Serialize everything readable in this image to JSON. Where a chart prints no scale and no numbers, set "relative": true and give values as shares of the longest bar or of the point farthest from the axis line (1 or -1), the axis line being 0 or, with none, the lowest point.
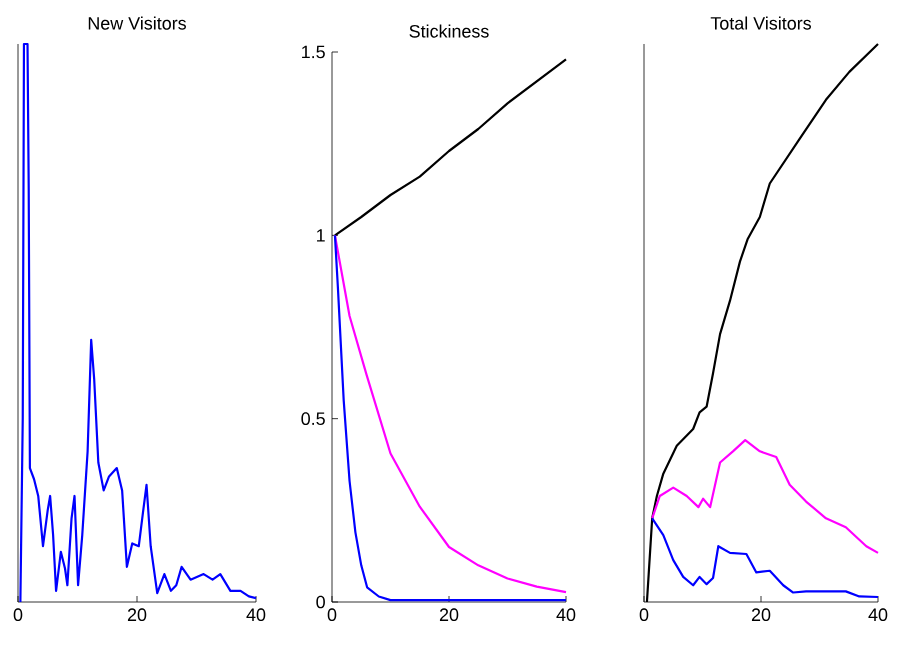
{
  "chart_data": [
    {
      "type": "line",
      "title": "New Visitors",
      "relative": true,
      "tick_labels": "x",
      "xlim": [
        0,
        40
      ],
      "xticks": [
        0,
        20,
        40
      ],
      "series": [
        {
          "color": "#0000ff",
          "x": [
            0.4,
            0.8,
            1.0,
            1.6,
            1.8,
            2.0,
            2.7,
            3.4,
            4.2,
            5.0,
            5.4,
            5.9,
            6.4,
            7.2,
            7.9,
            8.3,
            9.0,
            9.5,
            10.1,
            10.8,
            11.7,
            12.3,
            12.8,
            13.5,
            14.4,
            15.3,
            16.6,
            17.5,
            18.3,
            19.2,
            20.3,
            21.0,
            21.6,
            22.3,
            23.4,
            24.6,
            25.7,
            26.6,
            27.5,
            29.0,
            31.2,
            32.7,
            34.0,
            35.7,
            37.4,
            38.8,
            40
          ],
          "values": [
            0,
            0.33,
            1.0,
            1.0,
            0.74,
            0.24,
            0.22,
            0.19,
            0.1,
            0.165,
            0.19,
            0.12,
            0.02,
            0.09,
            0.06,
            0.03,
            0.15,
            0.19,
            0.03,
            0.12,
            0.27,
            0.47,
            0.4,
            0.25,
            0.2,
            0.225,
            0.24,
            0.2,
            0.063,
            0.105,
            0.1,
            0.16,
            0.21,
            0.1,
            0.016,
            0.05,
            0.02,
            0.03,
            0.063,
            0.04,
            0.05,
            0.04,
            0.05,
            0.02,
            0.02,
            0.01,
            0.007
          ]
        }
      ]
    },
    {
      "type": "line",
      "title": "Stickiness",
      "xlim": [
        0,
        40
      ],
      "xticks": [
        0,
        20,
        40
      ],
      "ylim": [
        0,
        1.5
      ],
      "yticks": [
        0,
        0.5,
        1,
        1.5
      ],
      "series": [
        {
          "color": "#000000",
          "x": [
            0.5,
            5,
            10,
            15,
            20,
            25,
            30,
            35,
            40
          ],
          "values": [
            1.0,
            1.05,
            1.11,
            1.16,
            1.23,
            1.29,
            1.36,
            1.42,
            1.48
          ]
        },
        {
          "color": "#ff00ff",
          "x": [
            0.5,
            3,
            5.9,
            10,
            15,
            20,
            25,
            30,
            35,
            40
          ],
          "values": [
            1.0,
            0.78,
            0.62,
            0.405,
            0.26,
            0.15,
            0.1,
            0.064,
            0.042,
            0.027
          ]
        },
        {
          "color": "#0000ff",
          "x": [
            0.5,
            1,
            2,
            3,
            4,
            5,
            6,
            8,
            10,
            40
          ],
          "values": [
            1.0,
            0.86,
            0.55,
            0.33,
            0.19,
            0.1,
            0.04,
            0.015,
            0.005,
            0.005
          ]
        }
      ]
    },
    {
      "type": "line",
      "title": "Total Visitors",
      "relative": true,
      "tick_labels": "x",
      "xlim": [
        0,
        40
      ],
      "xticks": [
        0,
        20,
        40
      ],
      "series": [
        {
          "color": "#000000",
          "x": [
            0.5,
            0.8,
            1.4,
            2.2,
            3.3,
            5.6,
            8.4,
            9.5,
            10.7,
            11.8,
            13,
            14.7,
            16.4,
            17.7,
            19.8,
            21.5,
            26.6,
            31.1,
            35.1,
            40
          ],
          "values": [
            0,
            0.05,
            0.15,
            0.19,
            0.23,
            0.28,
            0.31,
            0.34,
            0.35,
            0.41,
            0.48,
            0.54,
            0.61,
            0.65,
            0.69,
            0.75,
            0.83,
            0.9,
            0.95,
            1.0
          ]
        },
        {
          "color": "#ff00ff",
          "x": [
            1.4,
            2.7,
            5,
            7.3,
            9.3,
            10.1,
            11.3,
            13,
            15.2,
            17.3,
            19.8,
            22.6,
            24.9,
            27.7,
            31.1,
            34.5,
            38,
            40
          ],
          "values": [
            0.15,
            0.19,
            0.205,
            0.19,
            0.17,
            0.185,
            0.17,
            0.25,
            0.27,
            0.29,
            0.27,
            0.26,
            0.21,
            0.18,
            0.15,
            0.134,
            0.1,
            0.088
          ]
        },
        {
          "color": "#0000ff",
          "x": [
            1.4,
            3.3,
            5,
            6.7,
            8.4,
            9.5,
            10.7,
            11.8,
            12.7,
            14.7,
            17.5,
            19.2,
            21.5,
            23.8,
            25.5,
            27.7,
            34.5,
            36.8,
            40
          ],
          "values": [
            0.15,
            0.12,
            0.075,
            0.045,
            0.03,
            0.045,
            0.032,
            0.043,
            0.1,
            0.088,
            0.086,
            0.053,
            0.056,
            0.03,
            0.017,
            0.019,
            0.019,
            0.01,
            0.009
          ]
        }
      ]
    }
  ]
}
